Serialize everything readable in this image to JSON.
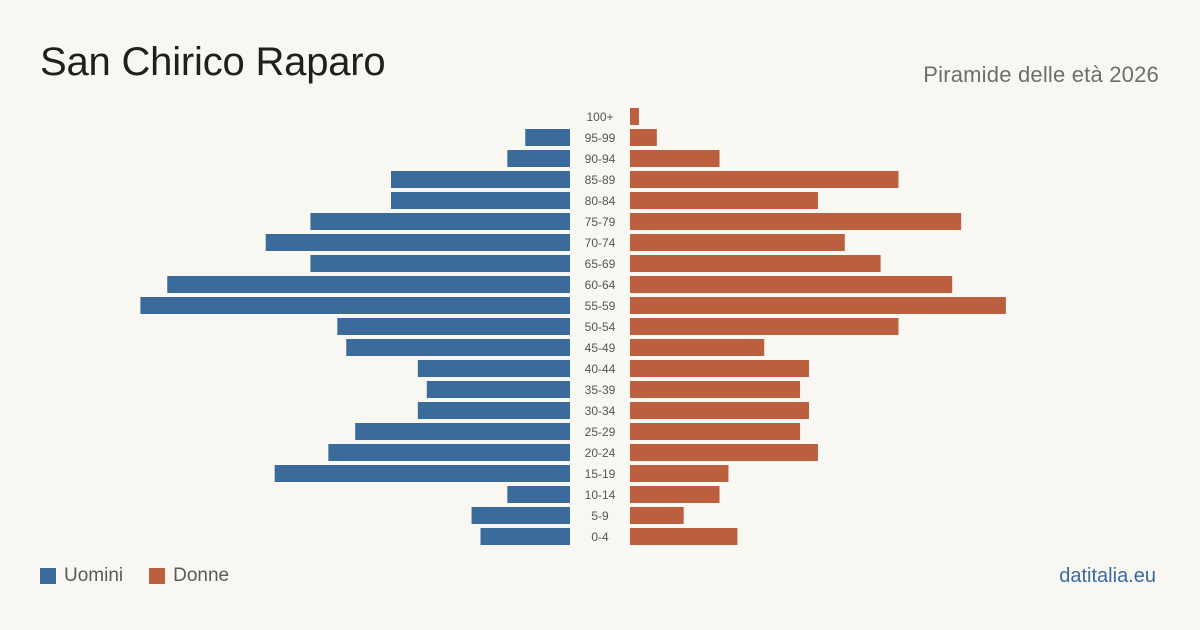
{
  "header": {
    "title": "San Chirico Raparo",
    "subtitle": "Piramide delle età 2026"
  },
  "legend": {
    "men_label": "Uomini",
    "women_label": "Donne"
  },
  "footer": {
    "brand": "datitalia.eu"
  },
  "colors": {
    "men": "#3b6b9a",
    "women": "#bc5f3e",
    "background": "#f9f7f2",
    "age_label": "#555555",
    "brand": "#3a6a9d"
  },
  "chart_data": {
    "type": "bar",
    "orientation": "horizontal-pyramid",
    "categories": [
      "100+",
      "95-99",
      "90-94",
      "85-89",
      "80-84",
      "75-79",
      "70-74",
      "65-69",
      "60-64",
      "55-59",
      "50-54",
      "45-49",
      "40-44",
      "35-39",
      "30-34",
      "25-29",
      "20-24",
      "15-19",
      "10-14",
      "5-9",
      "0-4"
    ],
    "series": [
      {
        "name": "Uomini",
        "color": "#3b6b9a",
        "values": [
          0,
          5,
          7,
          20,
          20,
          29,
          34,
          29,
          45,
          48,
          26,
          25,
          17,
          16,
          17,
          24,
          27,
          33,
          7,
          11,
          10
        ]
      },
      {
        "name": "Donne",
        "color": "#bc5f3e",
        "values": [
          1,
          3,
          10,
          30,
          21,
          37,
          24,
          28,
          36,
          42,
          30,
          15,
          20,
          19,
          20,
          19,
          21,
          11,
          10,
          6,
          12
        ]
      }
    ],
    "grid": false,
    "legend_position": "bottom-left"
  }
}
